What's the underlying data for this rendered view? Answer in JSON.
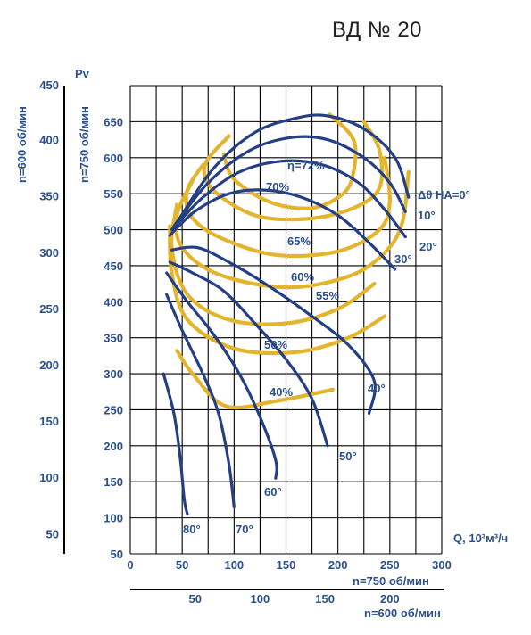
{
  "title": "ВД № 20",
  "colors": {
    "blade": "#253f85",
    "efficiency": "#e3b52e",
    "text": "#2a4f8c",
    "grid": "#000000"
  },
  "chart_data": {
    "type": "line",
    "grid": true,
    "xlabel": "Q, 10³м³/ч",
    "ylabel_pv": "Pv",
    "y_left_label_600": "n=600 об/мин",
    "y_left_label_750": "n=750 об/мин",
    "x_label_750": "n=750 об/мин",
    "x_label_600": "n=600 об/мин",
    "x_ticks_750": [
      "0",
      "50",
      "100",
      "150",
      "200",
      "250",
      "300"
    ],
    "x_ticks_600": [
      "50",
      "100",
      "150",
      "200"
    ],
    "y_ticks_750": [
      "50",
      "100",
      "150",
      "200",
      "250",
      "300",
      "350",
      "400",
      "450",
      "500",
      "550",
      "600",
      "650"
    ],
    "y_ticks_600": [
      "50",
      "100",
      "150",
      "200",
      "250",
      "300",
      "350",
      "400",
      "450"
    ],
    "xlim": [
      0,
      300
    ],
    "ylim": [
      50,
      700
    ],
    "blade_curves": [
      {
        "label": "Δθ НА=0°",
        "points": [
          [
            45,
            510
          ],
          [
            80,
            585
          ],
          [
            120,
            635
          ],
          [
            160,
            655
          ],
          [
            190,
            658
          ],
          [
            225,
            640
          ],
          [
            255,
            600
          ],
          [
            268,
            545
          ]
        ]
      },
      {
        "label": "10°",
        "points": [
          [
            42,
            505
          ],
          [
            75,
            565
          ],
          [
            115,
            610
          ],
          [
            155,
            628
          ],
          [
            190,
            625
          ],
          [
            225,
            600
          ],
          [
            250,
            565
          ],
          [
            265,
            525
          ]
        ]
      },
      {
        "label": "20°",
        "points": [
          [
            40,
            500
          ],
          [
            70,
            545
          ],
          [
            105,
            580
          ],
          [
            145,
            595
          ],
          [
            185,
            590
          ],
          [
            220,
            565
          ],
          [
            245,
            528
          ],
          [
            265,
            490
          ]
        ]
      },
      {
        "label": "30°",
        "points": [
          [
            38,
            492
          ],
          [
            62,
            525
          ],
          [
            95,
            550
          ],
          [
            130,
            555
          ],
          [
            165,
            545
          ],
          [
            200,
            520
          ],
          [
            230,
            482
          ],
          [
            255,
            445
          ]
        ]
      },
      {
        "label": "40°",
        "points": [
          [
            40,
            472
          ],
          [
            65,
            475
          ],
          [
            95,
            455
          ],
          [
            130,
            425
          ],
          [
            170,
            385
          ],
          [
            210,
            340
          ],
          [
            235,
            290
          ],
          [
            230,
            245
          ]
        ]
      },
      {
        "label": "50°",
        "points": [
          [
            38,
            455
          ],
          [
            60,
            440
          ],
          [
            90,
            415
          ],
          [
            120,
            370
          ],
          [
            150,
            320
          ],
          [
            175,
            265
          ],
          [
            190,
            200
          ]
        ]
      },
      {
        "label": "60°",
        "points": [
          [
            35,
            440
          ],
          [
            55,
            400
          ],
          [
            80,
            355
          ],
          [
            105,
            300
          ],
          [
            125,
            240
          ],
          [
            140,
            180
          ],
          [
            140,
            155
          ]
        ]
      },
      {
        "label": "70°",
        "points": [
          [
            35,
            410
          ],
          [
            50,
            360
          ],
          [
            70,
            300
          ],
          [
            85,
            245
          ],
          [
            95,
            175
          ],
          [
            100,
            115
          ]
        ]
      },
      {
        "label": "80°",
        "points": [
          [
            32,
            300
          ],
          [
            42,
            245
          ],
          [
            48,
            185
          ],
          [
            52,
            125
          ],
          [
            55,
            105
          ]
        ]
      }
    ],
    "efficiency_curves": [
      {
        "label": "η=72%",
        "points": [
          [
            90,
            605
          ],
          [
            100,
            570
          ],
          [
            135,
            538
          ],
          [
            175,
            530
          ],
          [
            205,
            550
          ],
          [
            215,
            580
          ],
          [
            215,
            625
          ],
          [
            192,
            660
          ]
        ]
      },
      {
        "label": "70%",
        "points": [
          [
            95,
            630
          ],
          [
            72,
            590
          ],
          [
            80,
            555
          ],
          [
            120,
            520
          ],
          [
            170,
            515
          ],
          [
            215,
            530
          ],
          [
            240,
            558
          ],
          [
            240,
            610
          ],
          [
            225,
            650
          ]
        ]
      },
      {
        "label": "65%",
        "points": [
          [
            70,
            590
          ],
          [
            55,
            555
          ],
          [
            58,
            520
          ],
          [
            85,
            490
          ],
          [
            140,
            465
          ],
          [
            200,
            470
          ],
          [
            240,
            500
          ],
          [
            250,
            540
          ],
          [
            245,
            600
          ]
        ]
      },
      {
        "label": "60%",
        "points": [
          [
            60,
            568
          ],
          [
            45,
            520
          ],
          [
            50,
            475
          ],
          [
            85,
            438
          ],
          [
            150,
            420
          ],
          [
            210,
            435
          ],
          [
            245,
            468
          ],
          [
            262,
            510
          ],
          [
            268,
            580
          ]
        ]
      },
      {
        "label": "55%",
        "points": [
          [
            45,
            535
          ],
          [
            40,
            475
          ],
          [
            55,
            410
          ],
          [
            95,
            375
          ],
          [
            150,
            370
          ],
          [
            200,
            390
          ],
          [
            235,
            425
          ]
        ]
      },
      {
        "label": "50%",
        "points": [
          [
            38,
            505
          ],
          [
            40,
            440
          ],
          [
            55,
            375
          ],
          [
            100,
            335
          ],
          [
            160,
            330
          ],
          [
            210,
            350
          ],
          [
            245,
            380
          ]
        ]
      },
      {
        "label": "40%",
        "points": [
          [
            45,
            332
          ],
          [
            60,
            300
          ],
          [
            92,
            255
          ],
          [
            140,
            262
          ],
          [
            195,
            278
          ]
        ]
      }
    ]
  }
}
